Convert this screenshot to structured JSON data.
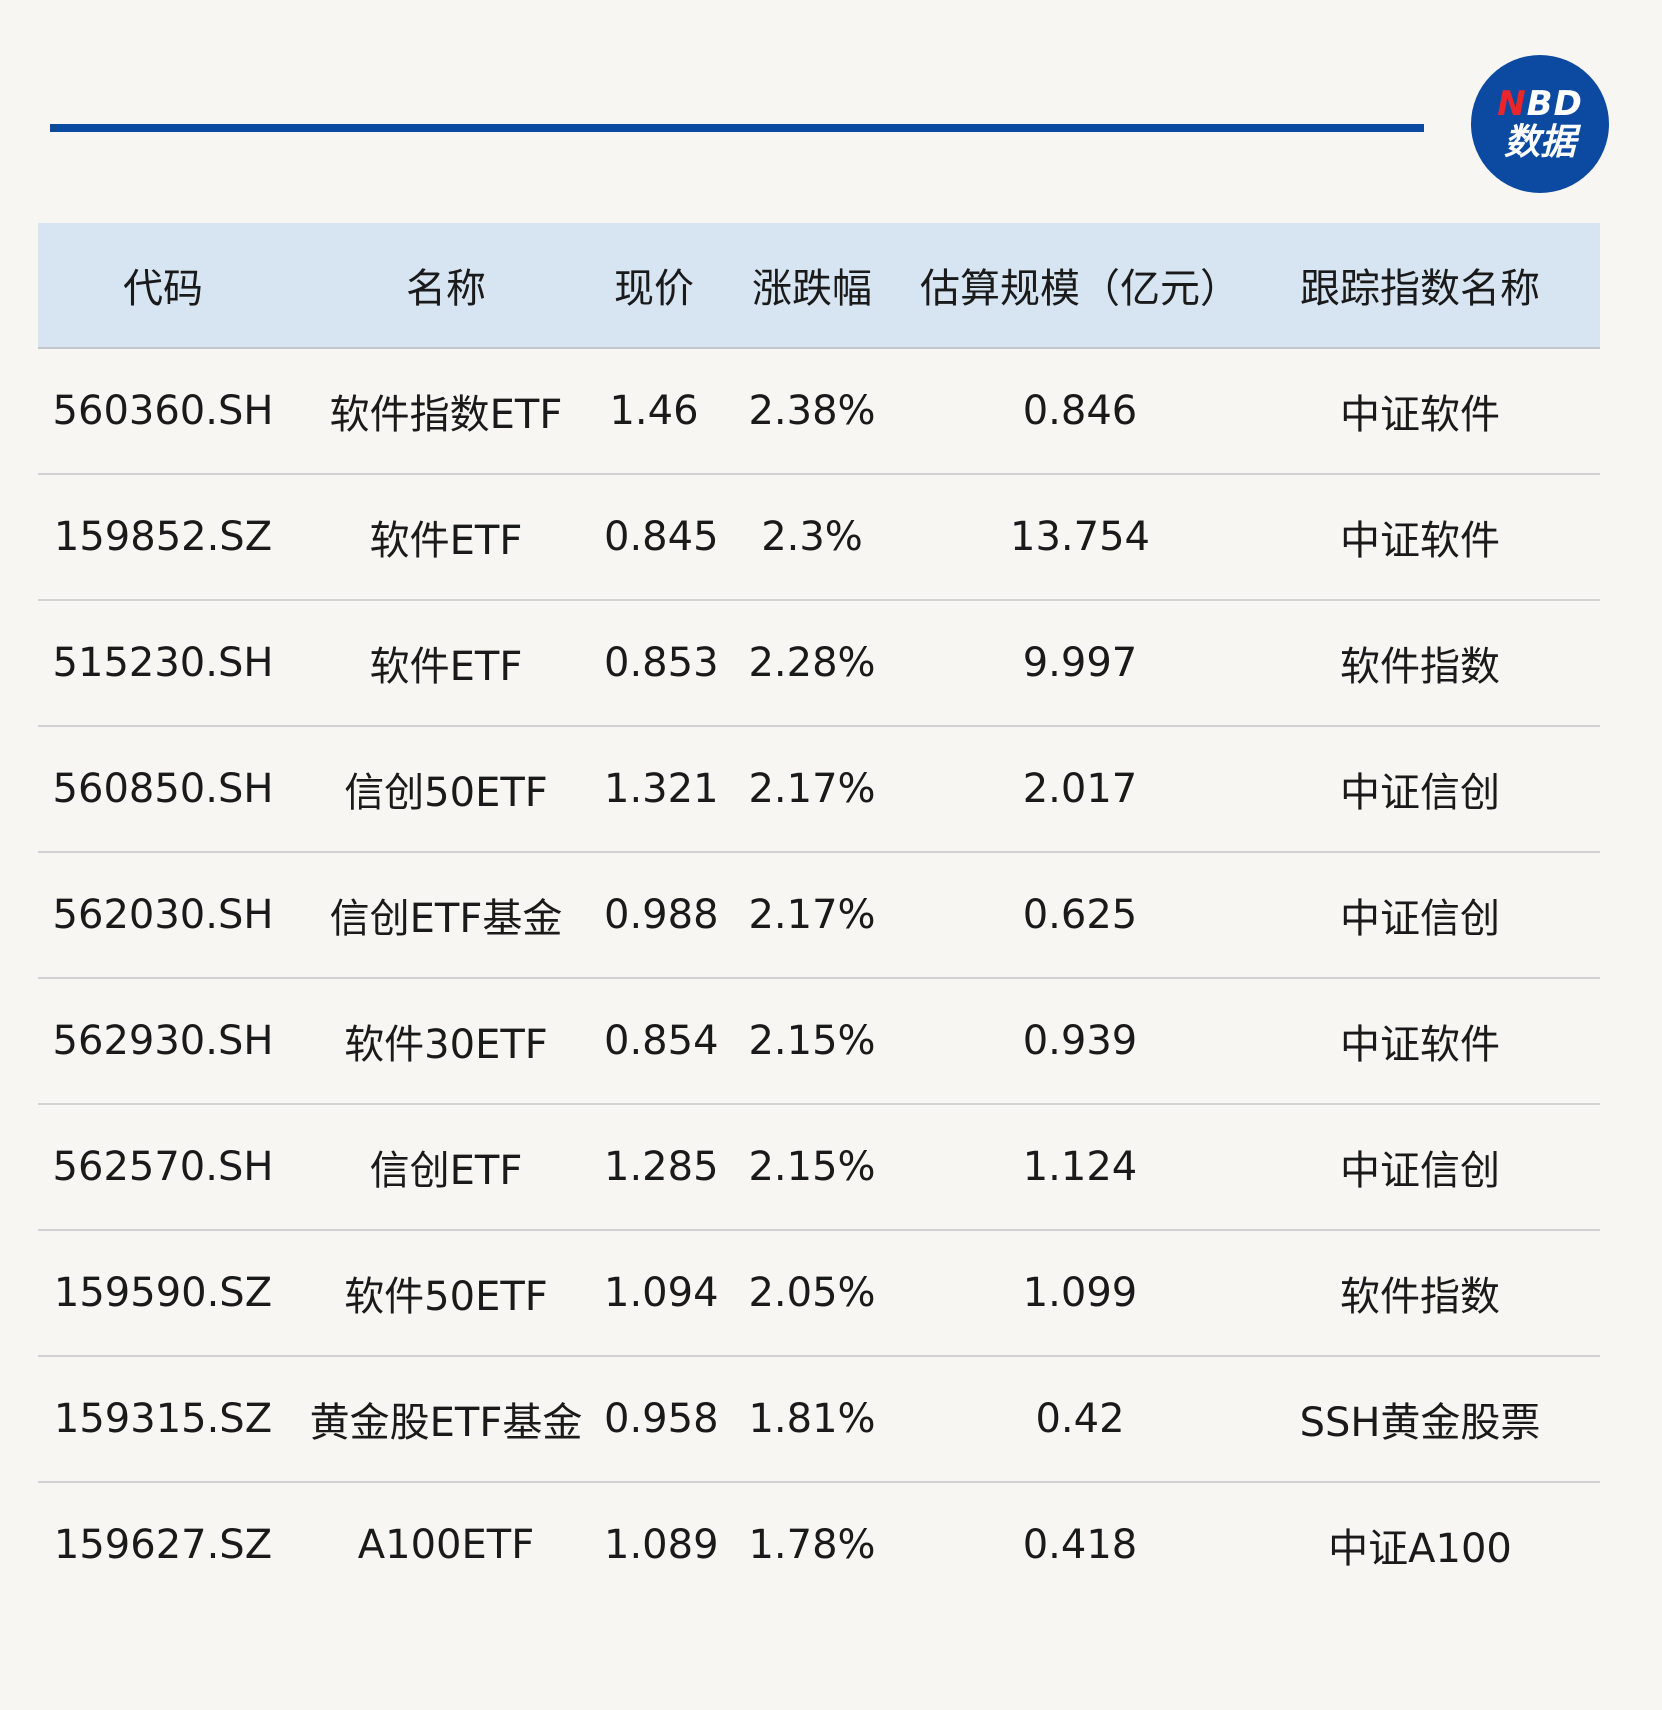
{
  "logo": {
    "mark_accent": "N",
    "mark_rest": "BD",
    "sub": "数据"
  },
  "colors": {
    "accent_blue": "#0b4aa0",
    "header_bg": "#d7e5f2",
    "logo_red": "#e8262c"
  },
  "table": {
    "headers": [
      "代码",
      "名称",
      "现价",
      "涨跌幅",
      "估算规模（亿元）",
      "跟踪指数名称"
    ],
    "rows": [
      [
        "560360.SH",
        "软件指数ETF",
        "1.46",
        "2.38%",
        "0.846",
        "中证软件"
      ],
      [
        "159852.SZ",
        "软件ETF",
        "0.845",
        "2.3%",
        "13.754",
        "中证软件"
      ],
      [
        "515230.SH",
        "软件ETF",
        "0.853",
        "2.28%",
        "9.997",
        "软件指数"
      ],
      [
        "560850.SH",
        "信创50ETF",
        "1.321",
        "2.17%",
        "2.017",
        "中证信创"
      ],
      [
        "562030.SH",
        "信创ETF基金",
        "0.988",
        "2.17%",
        "0.625",
        "中证信创"
      ],
      [
        "562930.SH",
        "软件30ETF",
        "0.854",
        "2.15%",
        "0.939",
        "中证软件"
      ],
      [
        "562570.SH",
        "信创ETF",
        "1.285",
        "2.15%",
        "1.124",
        "中证信创"
      ],
      [
        "159590.SZ",
        "软件50ETF",
        "1.094",
        "2.05%",
        "1.099",
        "软件指数"
      ],
      [
        "159315.SZ",
        "黄金股ETF基金",
        "0.958",
        "1.81%",
        "0.42",
        "SSH黄金股票"
      ],
      [
        "159627.SZ",
        "A100ETF",
        "1.089",
        "1.78%",
        "0.418",
        "中证A100"
      ]
    ]
  }
}
